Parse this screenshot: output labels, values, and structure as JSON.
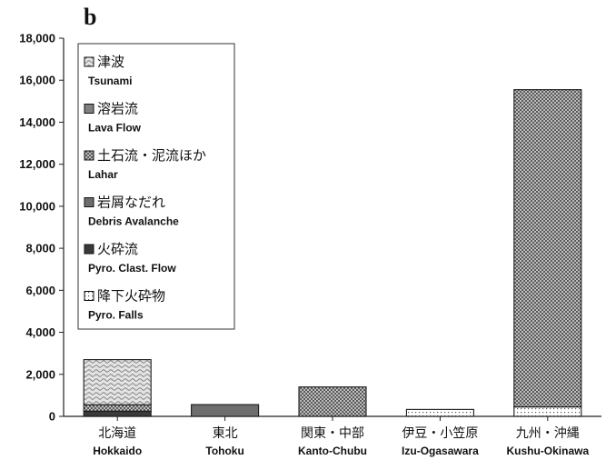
{
  "panel_label": "b",
  "chart_data": {
    "type": "bar",
    "stacked": true,
    "ylim": [
      0,
      18000
    ],
    "y_ticks": [
      "0",
      "2,000",
      "4,000",
      "6,000",
      "8,000",
      "10,000",
      "12,000",
      "14,000",
      "16,000",
      "18,000"
    ],
    "y_tick_values": [
      0,
      2000,
      4000,
      6000,
      8000,
      10000,
      12000,
      14000,
      16000,
      18000
    ],
    "grid": false,
    "legend_position": "top-left",
    "categories": [
      {
        "jp": "北海道",
        "en": "Hokkaido"
      },
      {
        "jp": "東北",
        "en": "Tohoku"
      },
      {
        "jp": "関東・中部",
        "en": "Kanto-Chubu"
      },
      {
        "jp": "伊豆・小笠原",
        "en": "Izu-Ogasawara"
      },
      {
        "jp": "九州・沖縄",
        "en": "Kushu-Okinawa"
      }
    ],
    "series": [
      {
        "key": "pyro_falls",
        "jp": "降下火砕物",
        "en": "Pyro. Falls",
        "pattern": "dots",
        "color": "#ffffff",
        "values": [
          0,
          0,
          0,
          330,
          450
        ]
      },
      {
        "key": "pyro_flow",
        "jp": "火砕流",
        "en": "Pyro. Clast. Flow",
        "pattern": "solid",
        "color": "#3a3a3a",
        "values": [
          250,
          0,
          0,
          0,
          0
        ]
      },
      {
        "key": "debris",
        "jp": "岩屑なだれ",
        "en": "Debris Avalanche",
        "pattern": "solid",
        "color": "#6e6e6e",
        "values": [
          0,
          560,
          0,
          0,
          0
        ]
      },
      {
        "key": "lahar",
        "jp": "土石流・泥流ほか",
        "en": "Lahar",
        "pattern": "checker",
        "color": "#9a9a9a",
        "values": [
          300,
          0,
          1400,
          0,
          15100
        ]
      },
      {
        "key": "lava",
        "jp": "溶岩流",
        "en": "Lava Flow",
        "pattern": "solid",
        "color": "#808080",
        "values": [
          0,
          0,
          0,
          0,
          0
        ]
      },
      {
        "key": "tsunami",
        "jp": "津波",
        "en": "Tsunami",
        "pattern": "waves",
        "color": "#c8c8c8",
        "values": [
          2150,
          0,
          0,
          0,
          0
        ]
      }
    ],
    "legend_order": [
      "tsunami",
      "lava",
      "lahar",
      "debris",
      "pyro_flow",
      "pyro_falls"
    ]
  }
}
